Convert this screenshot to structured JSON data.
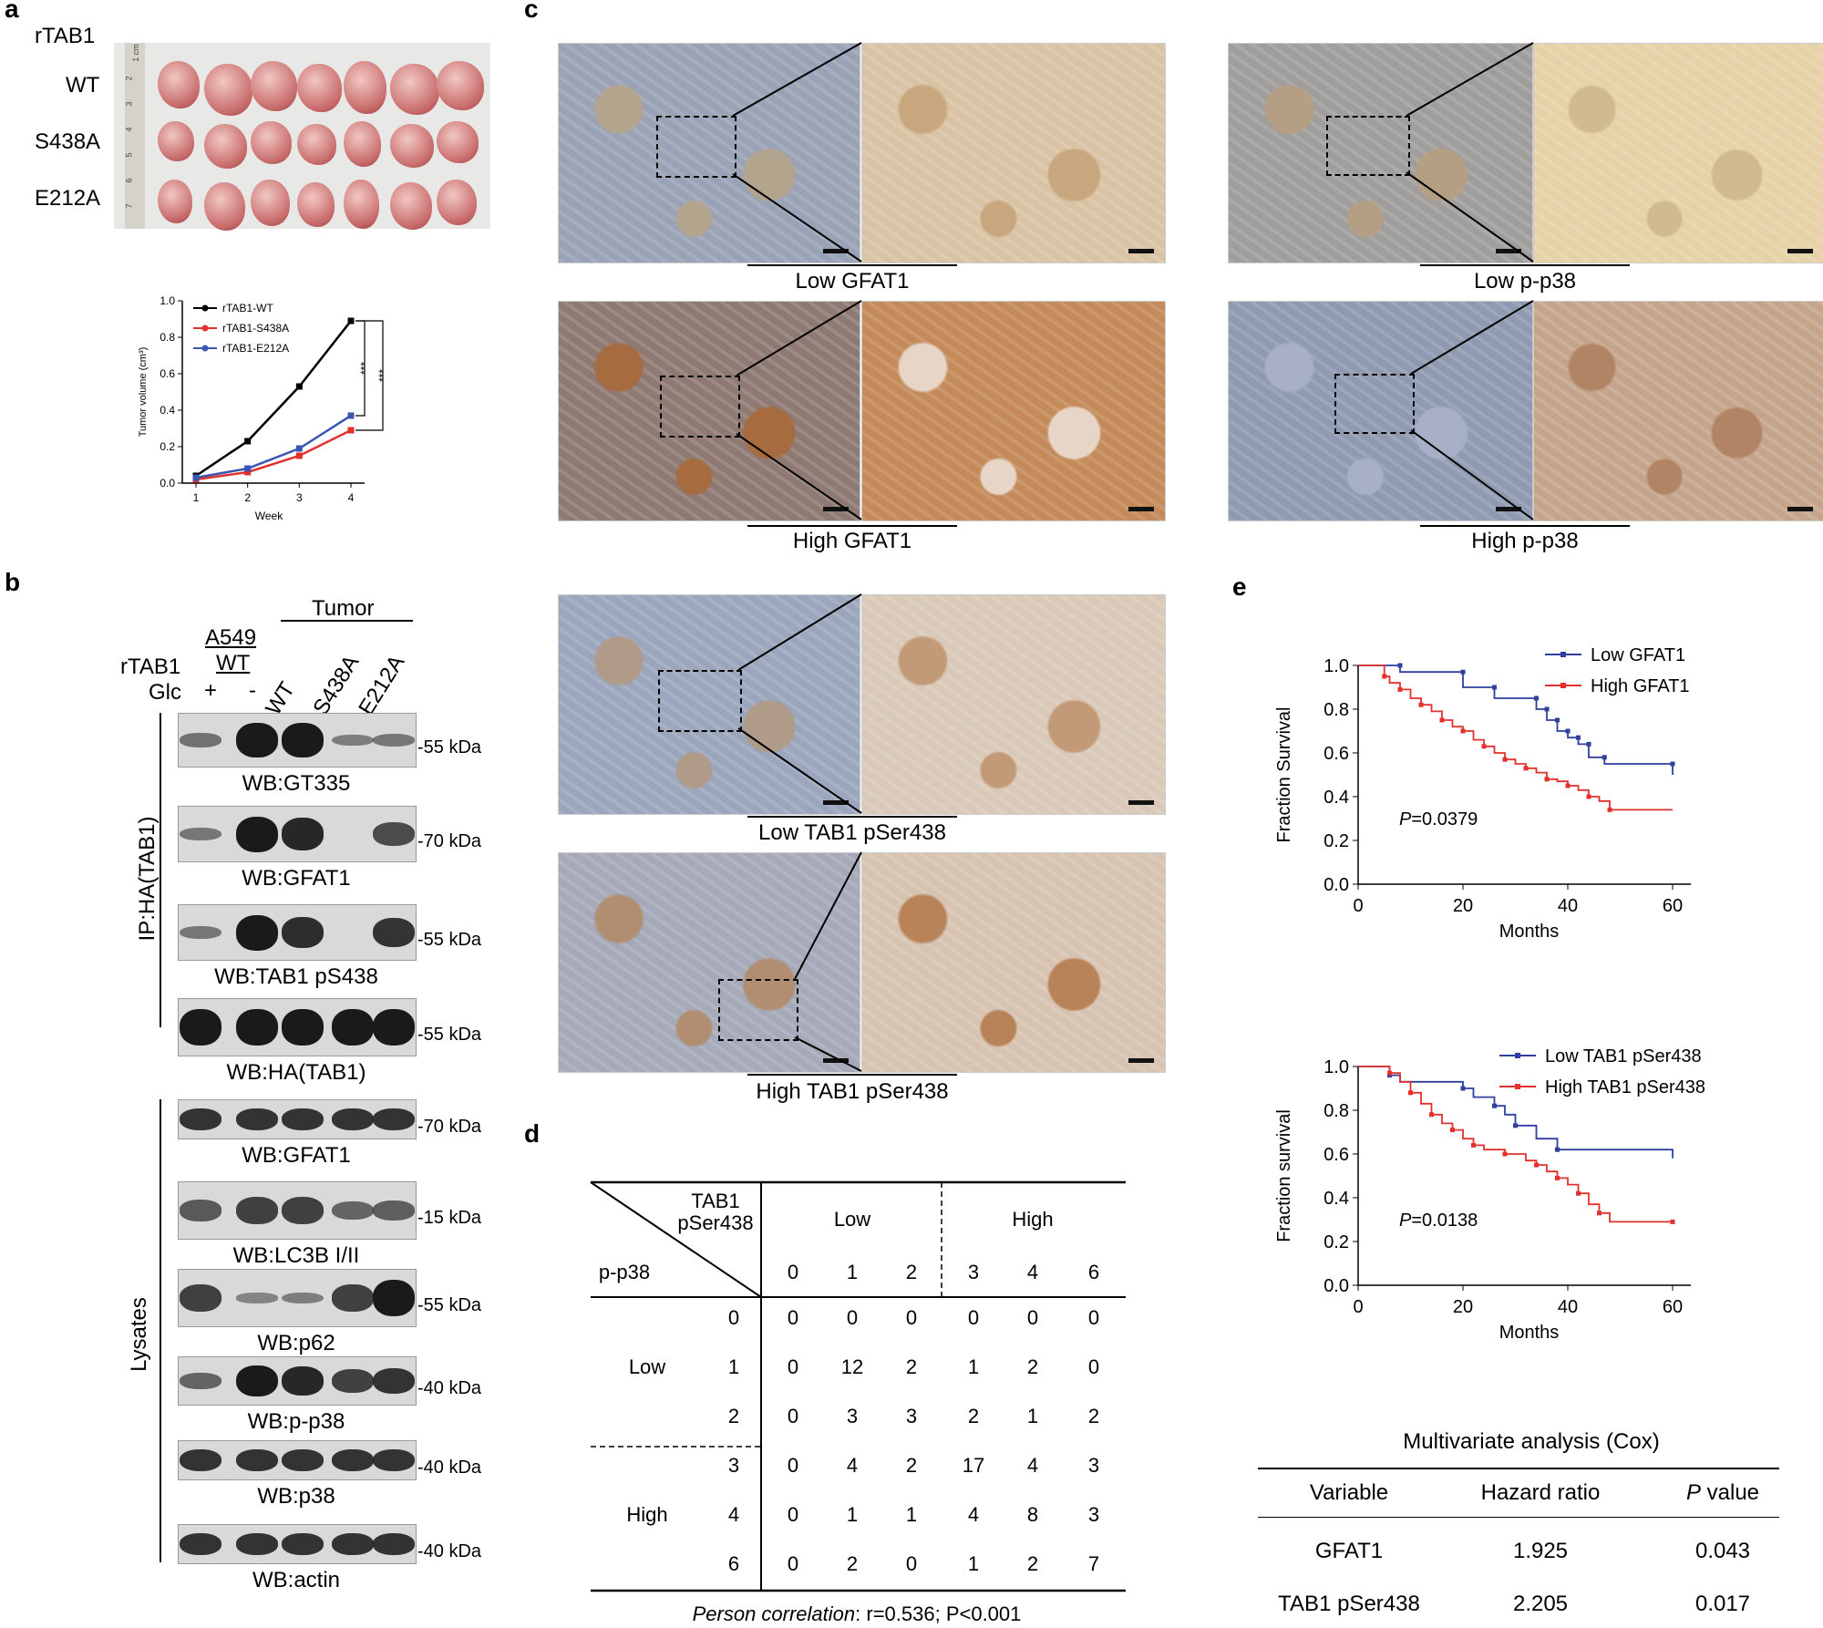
{
  "panels": {
    "a": "a",
    "b": "b",
    "c": "c",
    "d": "d",
    "e": "e"
  },
  "panel_a": {
    "rows": [
      "rTAB1",
      "WT",
      "S438A",
      "E212A"
    ],
    "ruler_marks": [
      "1 cm",
      "2",
      "3",
      "4",
      "5",
      "6",
      "7"
    ]
  },
  "chart_data": [
    {
      "type": "line",
      "title": "",
      "xlabel": "Week",
      "ylabel": "Tumor volume (cm³)",
      "x": [
        1,
        2,
        3,
        4
      ],
      "xticks": [
        "1",
        "2",
        "3",
        "4"
      ],
      "yticks": [
        "0.0",
        "0.2",
        "0.4",
        "0.6",
        "0.8",
        "1.0"
      ],
      "ylim": [
        0,
        1.0
      ],
      "series": [
        {
          "name": "rTAB1-WT",
          "color": "#000000",
          "values": [
            0.04,
            0.23,
            0.53,
            0.89
          ]
        },
        {
          "name": "rTAB1-S438A",
          "color": "#e3312d",
          "values": [
            0.02,
            0.06,
            0.15,
            0.29
          ]
        },
        {
          "name": "rTAB1-E212A",
          "color": "#3a55b4",
          "values": [
            0.03,
            0.08,
            0.19,
            0.37
          ]
        }
      ],
      "annotations": [
        "***",
        "***"
      ]
    },
    {
      "type": "line",
      "xlabel": "Months",
      "ylabel": "Fraction Survival",
      "xticks": [
        "0",
        "20",
        "40",
        "60"
      ],
      "yticks": [
        "0.0",
        "0.2",
        "0.4",
        "0.6",
        "0.8",
        "1.0"
      ],
      "ylim": [
        0,
        1.0
      ],
      "xlim": [
        0,
        60
      ],
      "series": [
        {
          "name": "Low  GFAT1",
          "color": "#2e3f9e",
          "x": [
            0,
            4,
            8,
            8,
            20,
            20,
            26,
            26,
            34,
            34,
            36,
            36,
            38,
            38,
            40,
            40,
            42,
            42,
            44,
            44,
            47,
            47,
            60,
            60
          ],
          "values": [
            1.0,
            1.0,
            1.0,
            0.97,
            0.97,
            0.9,
            0.9,
            0.85,
            0.85,
            0.8,
            0.8,
            0.75,
            0.75,
            0.7,
            0.7,
            0.67,
            0.67,
            0.64,
            0.64,
            0.58,
            0.58,
            0.55,
            0.55,
            0.5
          ]
        },
        {
          "name": "High GFAT1",
          "color": "#e3312d",
          "x": [
            0,
            4,
            5,
            6,
            8,
            10,
            12,
            14,
            16,
            18,
            20,
            22,
            24,
            26,
            28,
            30,
            32,
            34,
            36,
            38,
            40,
            42,
            44,
            46,
            48,
            60
          ],
          "values": [
            1.0,
            1.0,
            0.95,
            0.92,
            0.89,
            0.85,
            0.82,
            0.79,
            0.75,
            0.72,
            0.7,
            0.66,
            0.63,
            0.6,
            0.57,
            0.55,
            0.53,
            0.51,
            0.48,
            0.47,
            0.45,
            0.43,
            0.4,
            0.38,
            0.34,
            0.34
          ]
        }
      ],
      "annotation": "P=0.0379"
    },
    {
      "type": "line",
      "xlabel": "Months",
      "ylabel": "Fraction survival",
      "xticks": [
        "0",
        "20",
        "40",
        "60"
      ],
      "yticks": [
        "0.0",
        "0.2",
        "0.4",
        "0.6",
        "0.8",
        "1.0"
      ],
      "ylim": [
        0,
        1.0
      ],
      "xlim": [
        0,
        60
      ],
      "series": [
        {
          "name": "Low  TAB1 pSer438",
          "color": "#2e3f9e",
          "x": [
            0,
            4,
            6,
            8,
            20,
            22,
            26,
            28,
            30,
            34,
            38,
            60
          ],
          "values": [
            1.0,
            1.0,
            0.96,
            0.93,
            0.9,
            0.86,
            0.82,
            0.78,
            0.73,
            0.67,
            0.62,
            0.58
          ]
        },
        {
          "name": "High TAB1 pSer438",
          "color": "#e3312d",
          "x": [
            0,
            4,
            6,
            8,
            10,
            12,
            14,
            16,
            18,
            20,
            22,
            24,
            28,
            32,
            34,
            36,
            38,
            40,
            42,
            44,
            46,
            48,
            60
          ],
          "values": [
            1.0,
            1.0,
            0.97,
            0.93,
            0.88,
            0.83,
            0.78,
            0.74,
            0.71,
            0.67,
            0.64,
            0.62,
            0.6,
            0.57,
            0.55,
            0.52,
            0.49,
            0.46,
            0.42,
            0.37,
            0.33,
            0.29,
            0.29
          ]
        }
      ],
      "annotation": "P=0.0138"
    }
  ],
  "panel_b": {
    "tumor": "Tumor",
    "a549": "A549",
    "wt": "WT",
    "rtab1": "rTAB1",
    "glc": "Glc",
    "glc_plus": "+",
    "glc_minus": "-",
    "lanes": [
      "WT",
      "S438A",
      "E212A"
    ],
    "ip_label": "IP:HA(TAB1)",
    "lys_label": "Lysates",
    "blots": [
      {
        "wb": "WB:GT335",
        "kda": "-55 kDa"
      },
      {
        "wb": "WB:GFAT1",
        "kda": "-70 kDa"
      },
      {
        "wb": "WB:TAB1 pS438",
        "kda": "-55 kDa"
      },
      {
        "wb": "WB:HA(TAB1)",
        "kda": "-55 kDa"
      },
      {
        "wb": "WB:GFAT1",
        "kda": "-70 kDa"
      },
      {
        "wb": "WB:LC3B I/II",
        "kda": "-15 kDa"
      },
      {
        "wb": "WB:p62",
        "kda": "-55 kDa"
      },
      {
        "wb": "WB:p-p38",
        "kda": "-40 kDa"
      },
      {
        "wb": "WB:p38",
        "kda": "-40 kDa"
      },
      {
        "wb": "WB:actin",
        "kda": "-40 kDa"
      }
    ]
  },
  "panel_c": {
    "labels": [
      "Low GFAT1",
      "High GFAT1",
      "Low p-p38",
      "High p-p38",
      "Low TAB1 pSer438",
      "High TAB1 pSer438"
    ]
  },
  "panel_d": {
    "header_row_label": "TAB1",
    "header_row_label2": "pSer438",
    "header_col_label": "p-p38",
    "low": "Low",
    "high": "High",
    "col_values": [
      "0",
      "1",
      "2",
      "3",
      "4",
      "6"
    ],
    "row_values": [
      "0",
      "1",
      "2",
      "3",
      "4",
      "6"
    ],
    "table": [
      [
        "0",
        "0",
        "0",
        "0",
        "0",
        "0"
      ],
      [
        "0",
        "12",
        "2",
        "1",
        "2",
        "0"
      ],
      [
        "0",
        "3",
        "3",
        "2",
        "1",
        "2"
      ],
      [
        "0",
        "4",
        "2",
        "17",
        "4",
        "3"
      ],
      [
        "0",
        "1",
        "1",
        "4",
        "8",
        "3"
      ],
      [
        "0",
        "2",
        "0",
        "1",
        "2",
        "7"
      ]
    ],
    "footnote_a": "Person correlation",
    "footnote_b": ": r=0.536; P<0.001"
  },
  "panel_e": {
    "cox_title": "Multivariate analysis (Cox)",
    "headers": [
      "Variable",
      "Hazard ratio",
      "P value"
    ],
    "rows": [
      [
        "GFAT1",
        "1.925",
        "0.043"
      ],
      [
        "TAB1 pSer438",
        "2.205",
        "0.017"
      ]
    ]
  }
}
